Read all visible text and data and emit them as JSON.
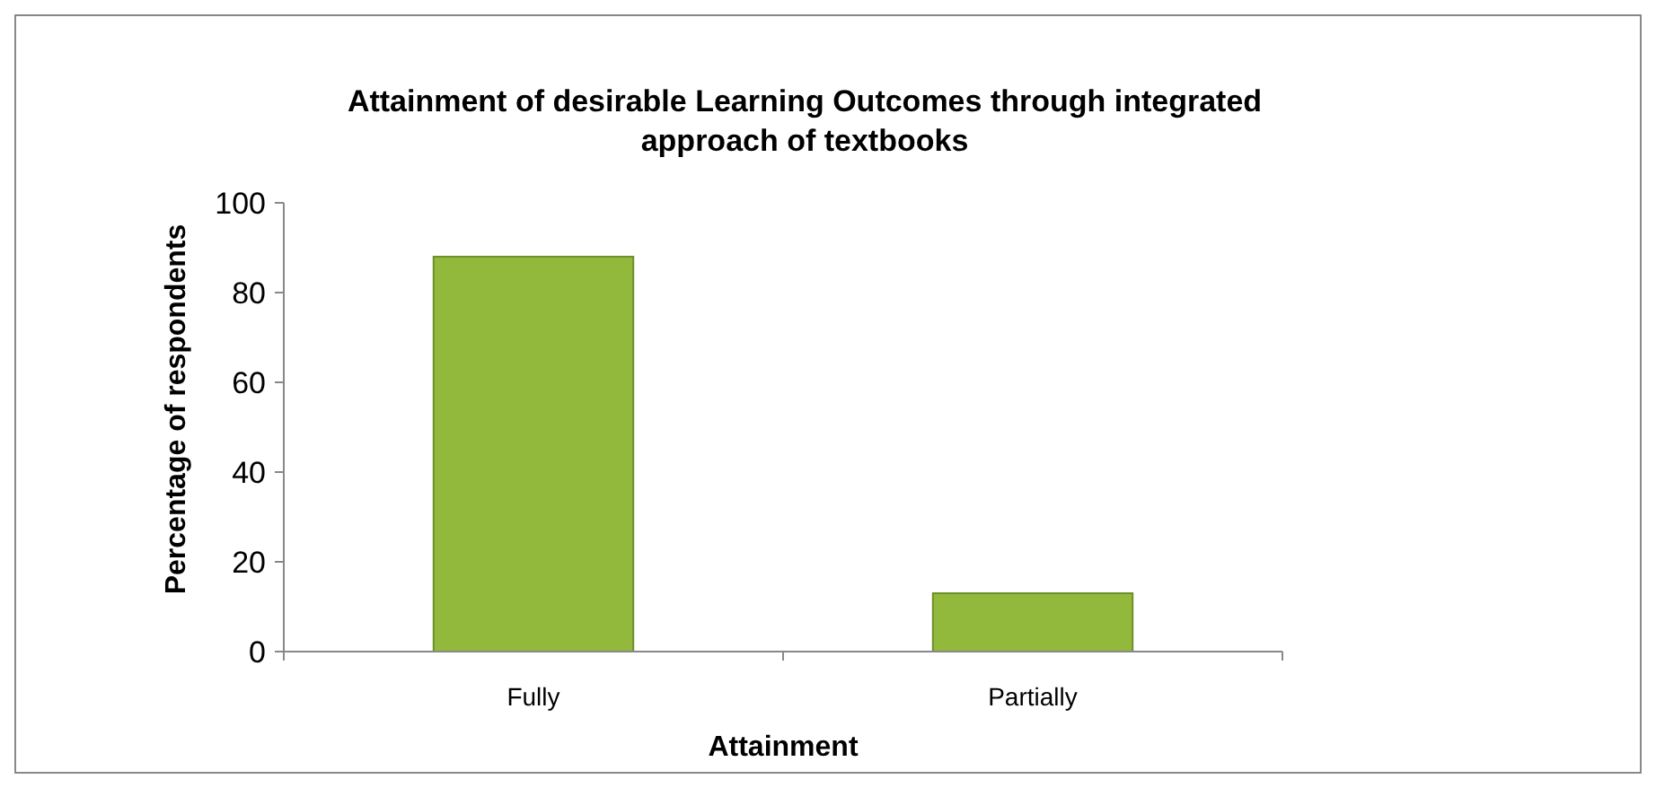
{
  "chart_data": {
    "type": "bar",
    "title": "Attainment of desirable Learning Outcomes through integrated approach of textbooks",
    "xlabel": "Attainment",
    "ylabel": "Percentage of respondents",
    "categories": [
      "Fully",
      "Partially"
    ],
    "values": [
      88,
      13
    ],
    "color": "#92b83c",
    "ylim": [
      0,
      100
    ],
    "yticks": [
      0,
      20,
      40,
      60,
      80,
      100
    ],
    "grid": false
  }
}
